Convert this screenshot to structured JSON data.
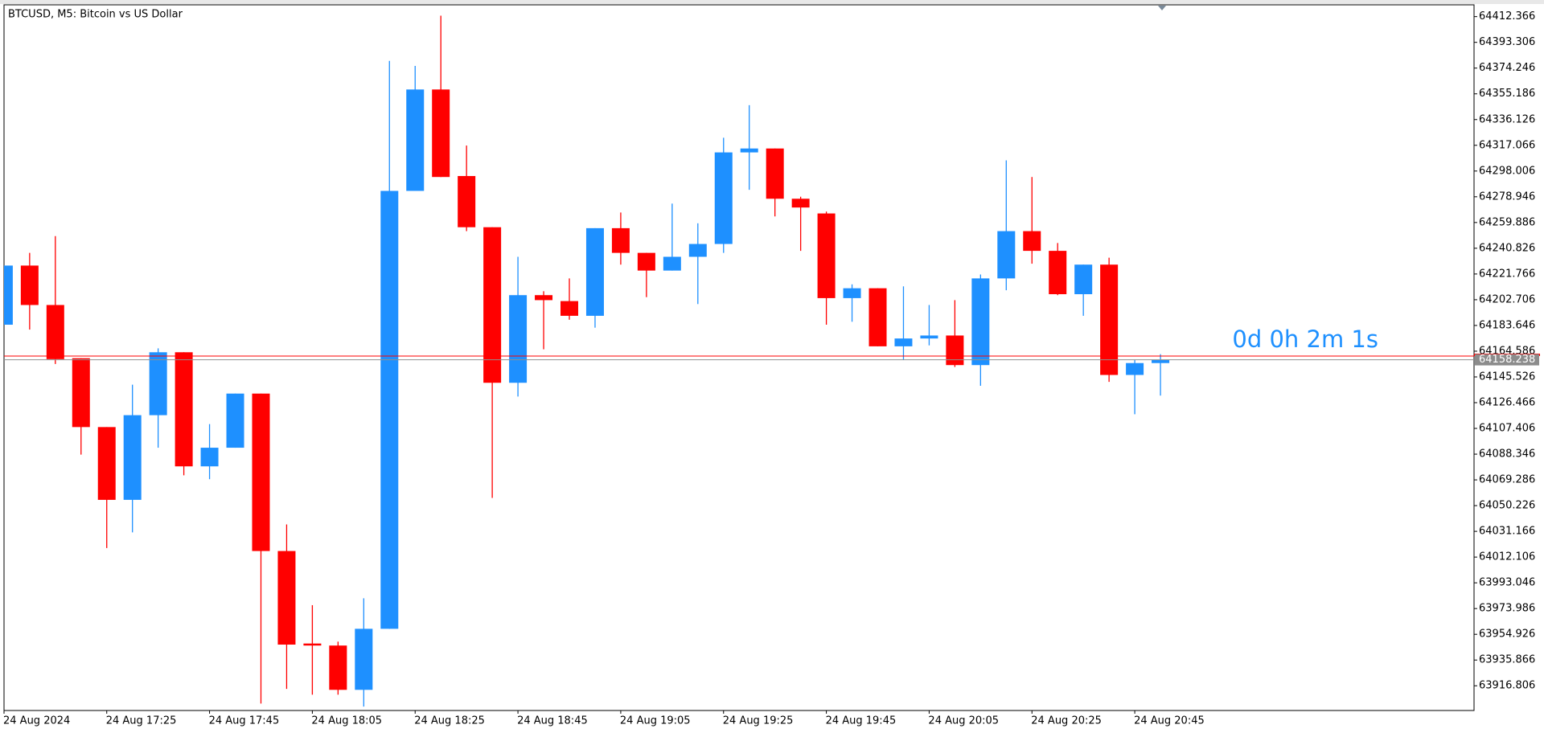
{
  "chart_data": {
    "type": "candlestick",
    "title": "BTCUSD, M5:  Bitcoin vs US Dollar",
    "categories": [
      "24 Aug 2024",
      null,
      null,
      null,
      "24 Aug 17:25",
      null,
      null,
      null,
      "24 Aug 17:45",
      null,
      null,
      null,
      "24 Aug 18:05",
      null,
      null,
      null,
      "24 Aug 18:25",
      null,
      null,
      null,
      "24 Aug 18:45",
      null,
      null,
      null,
      "24 Aug 19:05",
      null,
      null,
      null,
      "24 Aug 19:25",
      null,
      null,
      null,
      "24 Aug 19:45",
      null,
      null,
      null,
      "24 Aug 20:05",
      null,
      null,
      null,
      "24 Aug 20:25",
      null,
      null,
      null,
      "24 Aug 20:45",
      null
    ],
    "open": [
      64184.2,
      64228.0,
      64198.8,
      64159.4,
      64108.4,
      64054.5,
      64117.2,
      64163.8,
      64079.3,
      64093.1,
      64133.2,
      64016.6,
      63948.1,
      63946.6,
      63913.8,
      63959.0,
      64283.3,
      64358.4,
      64294.3,
      64256.4,
      64141.2,
      64206.1,
      64201.7,
      64190.8,
      64255.7,
      64237.4,
      64224.3,
      64234.5,
      64244.0,
      64311.8,
      64314.7,
      64277.5,
      64266.6,
      64203.9,
      64211.2,
      64168.2,
      64174.0,
      64176.2,
      64154.3,
      64218.5,
      64253.5,
      64238.9,
      64206.8,
      64228.7,
      64147.0,
      64155.8
    ],
    "high": [
      64228.0,
      64237.4,
      64249.8,
      64159.4,
      64108.4,
      64139.8,
      64166.7,
      64163.8,
      64110.6,
      64133.2,
      64133.2,
      64036.3,
      63976.5,
      63949.5,
      63981.6,
      64379.6,
      64375.9,
      64413.1,
      64316.9,
      64256.4,
      64234.5,
      64209.0,
      64218.5,
      64255.7,
      64267.3,
      64237.4,
      64273.9,
      64259.3,
      64322.7,
      64346.8,
      64314.7,
      64279.0,
      64268.0,
      64214.1,
      64211.2,
      64212.6,
      64198.8,
      64202.4,
      64221.4,
      64305.9,
      64293.6,
      64244.7,
      64228.7,
      64233.8,
      64158.0,
      64162.4
    ],
    "low": [
      64184.2,
      64180.6,
      64155.1,
      64088.0,
      64018.8,
      64030.4,
      64093.1,
      64072.7,
      64069.8,
      64093.1,
      63903.6,
      63914.5,
      63910.2,
      63910.2,
      63901.4,
      63959.0,
      64283.3,
      64293.6,
      64253.5,
      64055.9,
      64131.0,
      64166.0,
      64187.9,
      64182.0,
      64228.7,
      64204.6,
      64224.3,
      64199.5,
      64237.4,
      64284.1,
      64264.4,
      64238.9,
      64184.2,
      64186.4,
      64168.2,
      64158.0,
      64168.9,
      64152.9,
      64139.0,
      64209.7,
      64229.4,
      64206.1,
      64190.8,
      64141.9,
      64117.9,
      64131.7
    ],
    "close": [
      64228.0,
      64198.8,
      64158.7,
      64108.4,
      64054.5,
      64117.2,
      64163.8,
      64079.3,
      64093.1,
      64133.2,
      64016.6,
      63947.3,
      63946.6,
      63913.8,
      63959.0,
      64283.3,
      64358.4,
      64293.6,
      64256.4,
      64141.2,
      64206.1,
      64202.4,
      64190.8,
      64255.7,
      64237.4,
      64224.3,
      64234.5,
      64244.0,
      64311.8,
      64314.7,
      64277.5,
      64271.0,
      64203.9,
      64211.2,
      64168.2,
      64174.0,
      64176.2,
      64154.3,
      64218.5,
      64253.5,
      64238.9,
      64206.8,
      64228.7,
      64147.0,
      64155.8,
      64158.2
    ],
    "up_color": "#1e90ff",
    "down_color": "#ff0000",
    "ylim": [
      63898.5,
      64421.1
    ],
    "yticks": [
      64412.366,
      64393.306,
      64374.246,
      64355.186,
      64336.126,
      64317.066,
      64298.006,
      64278.946,
      64259.886,
      64240.826,
      64221.766,
      64202.706,
      64183.646,
      64164.586,
      64145.526,
      64126.466,
      64107.406,
      64088.346,
      64069.286,
      64050.226,
      64031.166,
      64012.106,
      63993.046,
      63973.986,
      63954.926,
      63935.866,
      63916.806
    ],
    "grid": false,
    "last_price": 64158.238,
    "ask_price": 64161.0,
    "countdown": "0d 0h 2m 1s"
  }
}
